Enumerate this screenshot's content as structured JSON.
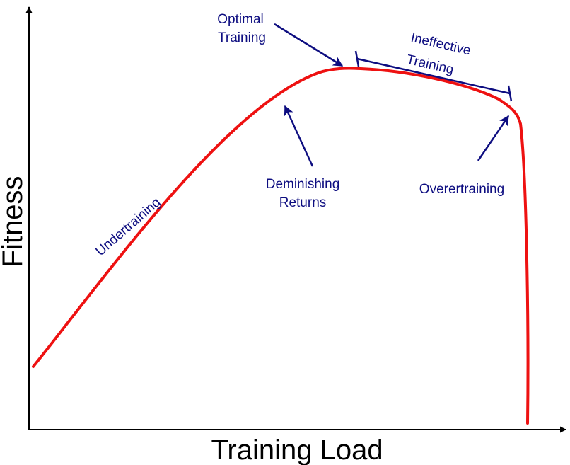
{
  "colors": {
    "curve": "#ee1111",
    "annotation": "#0d0d80",
    "axis": "#000000",
    "background": "#ffffff"
  },
  "axes": {
    "x_label": "Training Load",
    "y_label": "Fitness"
  },
  "annotations": {
    "optimal_line1": "Optimal",
    "optimal_line2": "Training",
    "ineffective_line1": "Ineffective",
    "ineffective_line2": "Training",
    "deminishing_line1": "Deminishing",
    "deminishing_line2": "Returns",
    "overertraining": "Overertraining",
    "undertraining": "Undertraining"
  }
}
